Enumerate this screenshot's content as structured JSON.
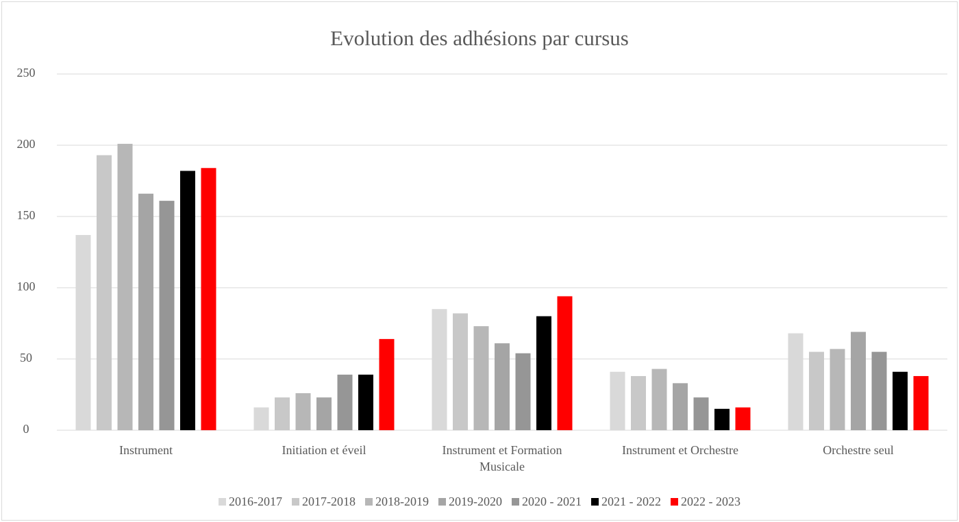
{
  "chart_data": {
    "type": "bar",
    "title": "Evolution des adhésions par cursus",
    "categories": [
      "Instrument",
      "Initiation et éveil",
      "Instrument et Formation Musicale",
      "Instrument et Orchestre",
      "Orchestre seul"
    ],
    "series": [
      {
        "name": "2016-2017",
        "color": "#d9d9d9",
        "values": [
          137,
          16,
          85,
          41,
          68
        ]
      },
      {
        "name": "2017-2018",
        "color": "#c8c8c8",
        "values": [
          193,
          23,
          82,
          38,
          55
        ]
      },
      {
        "name": "2018-2019",
        "color": "#b7b7b7",
        "values": [
          201,
          26,
          73,
          43,
          57
        ]
      },
      {
        "name": "2019-2020",
        "color": "#a5a5a5",
        "values": [
          166,
          23,
          61,
          33,
          69
        ]
      },
      {
        "name": "2020 - 2021",
        "color": "#969696",
        "values": [
          161,
          39,
          54,
          23,
          55
        ]
      },
      {
        "name": "2021 - 2022",
        "color": "#000000",
        "values": [
          182,
          39,
          80,
          15,
          41
        ]
      },
      {
        "name": "2022 - 2023",
        "color": "#ff0000",
        "values": [
          184,
          64,
          94,
          16,
          38
        ]
      }
    ],
    "ylim": [
      0,
      250
    ],
    "yticks": [
      0,
      50,
      100,
      150,
      200,
      250
    ],
    "grid": true,
    "legend": "bottom"
  }
}
